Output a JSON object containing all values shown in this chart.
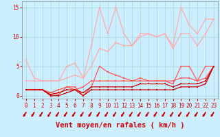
{
  "title": "",
  "xlabel": "Vent moyen/en rafales ( km/h )",
  "ylabel": "",
  "bg_color": "#cceeff",
  "grid_color": "#aadddd",
  "x_ticks": [
    0,
    1,
    2,
    3,
    4,
    5,
    6,
    7,
    8,
    9,
    10,
    11,
    12,
    13,
    14,
    15,
    16,
    17,
    18,
    19,
    20,
    21,
    22,
    23
  ],
  "ylim": [
    -0.5,
    16
  ],
  "xlim": [
    -0.5,
    23.5
  ],
  "lines": [
    {
      "y": [
        6.0,
        3.0,
        2.5,
        2.5,
        2.5,
        5.0,
        5.5,
        3.0,
        8.5,
        15.0,
        10.5,
        15.0,
        10.5,
        8.5,
        10.5,
        10.5,
        10.0,
        10.5,
        8.5,
        15.0,
        12.0,
        10.5,
        13.0,
        13.0
      ],
      "color": "#ffaaaa",
      "lw": 0.9,
      "marker": "s",
      "ms": 2.0,
      "zorder": 3
    },
    {
      "y": [
        2.5,
        2.5,
        2.5,
        2.5,
        2.5,
        3.0,
        3.5,
        3.0,
        5.0,
        8.0,
        7.5,
        9.0,
        8.5,
        8.5,
        10.0,
        10.5,
        10.0,
        10.5,
        8.0,
        10.5,
        10.5,
        8.5,
        10.5,
        13.0
      ],
      "color": "#ffaaaa",
      "lw": 0.9,
      "marker": "s",
      "ms": 2.0,
      "zorder": 3
    },
    {
      "y": [
        1.0,
        1.0,
        1.0,
        0.5,
        0.2,
        1.5,
        1.5,
        0.0,
        1.5,
        5.0,
        4.0,
        3.5,
        3.0,
        2.5,
        3.0,
        2.5,
        2.5,
        2.5,
        2.0,
        5.0,
        5.0,
        2.5,
        5.0,
        5.0
      ],
      "color": "#ff5555",
      "lw": 0.9,
      "marker": "s",
      "ms": 2.0,
      "zorder": 4
    },
    {
      "y": [
        1.0,
        1.0,
        1.0,
        0.5,
        1.0,
        1.5,
        1.0,
        1.5,
        2.5,
        2.5,
        2.5,
        2.5,
        2.5,
        2.5,
        2.5,
        2.5,
        2.5,
        2.5,
        2.5,
        3.0,
        3.0,
        2.5,
        3.0,
        5.0
      ],
      "color": "#ff5555",
      "lw": 0.9,
      "marker": "s",
      "ms": 2.0,
      "zorder": 4
    },
    {
      "y": [
        1.0,
        1.0,
        1.0,
        0.2,
        0.5,
        1.0,
        1.0,
        0.5,
        1.5,
        1.5,
        1.5,
        1.5,
        1.5,
        1.5,
        2.0,
        2.0,
        2.0,
        2.0,
        1.5,
        2.0,
        2.0,
        2.0,
        2.5,
        5.0
      ],
      "color": "#cc0000",
      "lw": 0.9,
      "marker": "s",
      "ms": 2.0,
      "zorder": 5
    },
    {
      "y": [
        1.0,
        1.0,
        1.0,
        0.0,
        0.0,
        0.5,
        1.0,
        0.0,
        1.0,
        1.0,
        1.0,
        1.0,
        1.0,
        1.0,
        1.0,
        1.0,
        1.0,
        1.0,
        1.0,
        1.5,
        1.5,
        1.5,
        2.0,
        5.0
      ],
      "color": "#cc0000",
      "lw": 0.9,
      "marker": "s",
      "ms": 2.0,
      "zorder": 5
    }
  ],
  "arrow_color": "#cc0000",
  "tick_label_color": "#cc0000",
  "axis_label_color": "#cc0000",
  "tick_fontsize": 5.5,
  "xlabel_fontsize": 7.5,
  "yticks": [
    0,
    5,
    10,
    15
  ]
}
